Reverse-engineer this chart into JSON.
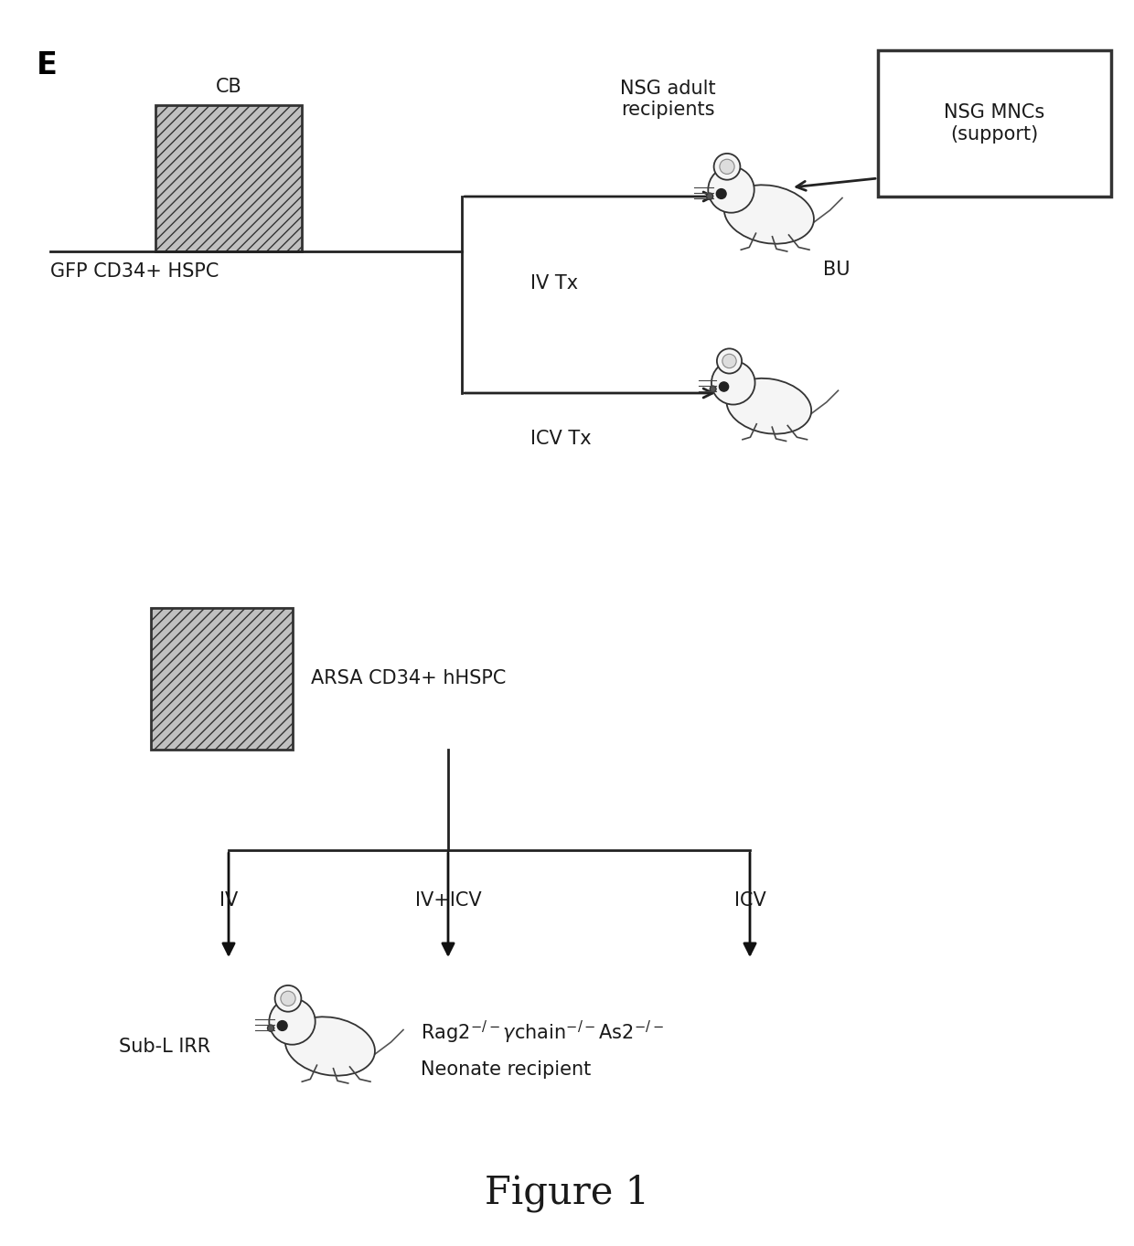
{
  "fig_label": "E",
  "figure_title": "Figure 1",
  "bg_color": "#ffffff",
  "panel_top": {
    "cb_label": "CB",
    "source_label": "GFP CD34+ HSPC",
    "iv_label": "IV Tx",
    "icv_label": "ICV Tx",
    "bu_label": "BU",
    "nsg_adult_label": "NSG adult\nrecipients",
    "nsg_mnc_label": "NSG MNCs\n(support)"
  },
  "panel_bottom": {
    "source_label": "ARSA CD34+ hHSPC",
    "iv_label": "IV",
    "iv_icv_label": "IV+ICV",
    "icv_label": "ICV",
    "sub_l_label": "Sub-L IRR",
    "neonate_line1": "Rag2",
    "neonate_line2": "chain",
    "neonate_line3": "As2",
    "neonate_rest": "Neonate recipient"
  },
  "line_color": "#222222",
  "line_width": 2.0,
  "text_color": "#1a1a1a",
  "fontsize_main": 15,
  "fontsize_label": 13,
  "fontsize_title": 30
}
